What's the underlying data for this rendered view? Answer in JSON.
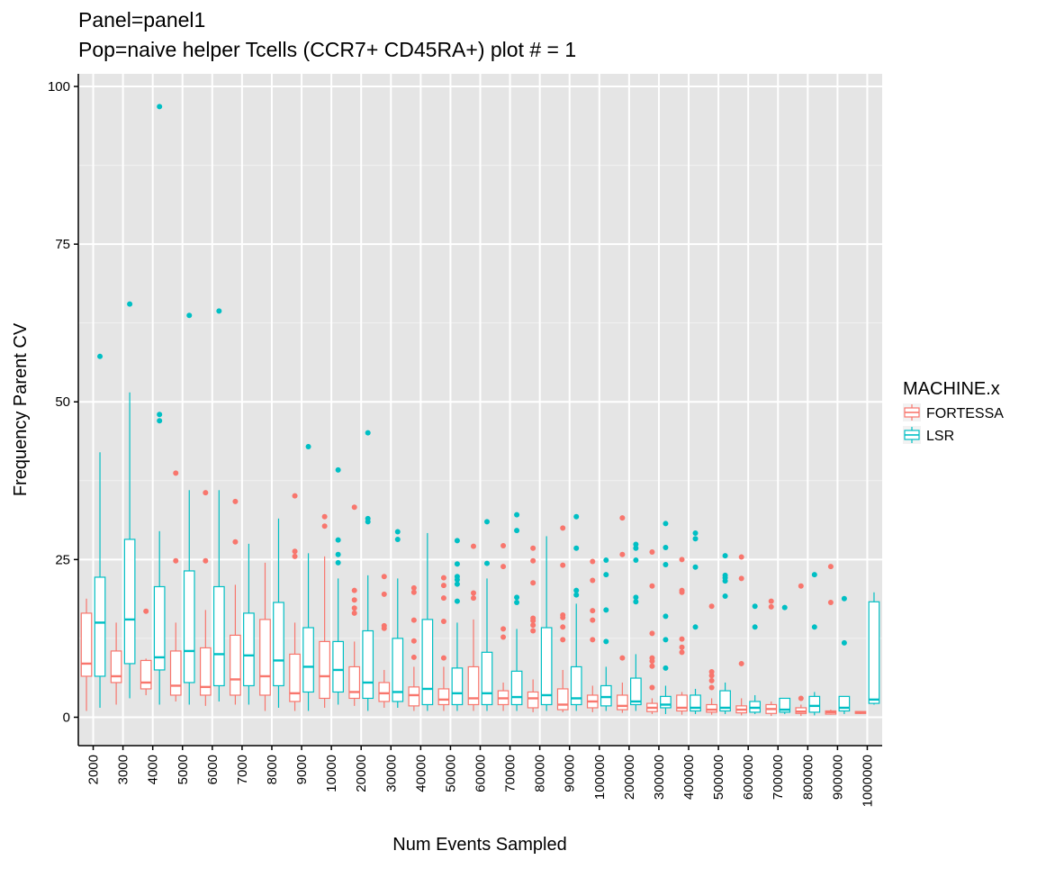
{
  "chart_data": {
    "type": "boxplot",
    "title": "Panel=panel1",
    "subtitle": "Pop=naive helper Tcells (CCR7+ CD45RA+) plot # = 1",
    "xlabel": "Num Events Sampled",
    "ylabel": "Frequency Parent CV",
    "ylim": [
      -4.5,
      102
    ],
    "yticks": [
      0,
      25,
      50,
      75,
      100
    ],
    "ytick_labels": [
      "0",
      "25",
      "50",
      "75",
      "100"
    ],
    "grid": true,
    "legend": {
      "title": "MACHINE.x",
      "placement": "right",
      "entries": [
        "FORTESSA",
        "LSR"
      ]
    },
    "categories": [
      "2000",
      "3000",
      "4000",
      "5000",
      "6000",
      "7000",
      "8000",
      "9000",
      "10000",
      "20000",
      "30000",
      "40000",
      "50000",
      "60000",
      "70000",
      "80000",
      "90000",
      "100000",
      "200000",
      "300000",
      "400000",
      "500000",
      "600000",
      "700000",
      "800000",
      "900000",
      "1000000"
    ],
    "series": [
      {
        "name": "FORTESSA",
        "color": "#F8766D",
        "boxes": [
          {
            "lo": 1.0,
            "q1": 6.5,
            "med": 8.5,
            "q3": 16.5,
            "hi": 18.8,
            "out": []
          },
          {
            "lo": 2.0,
            "q1": 5.5,
            "med": 6.5,
            "q3": 10.5,
            "hi": 15.0,
            "out": []
          },
          {
            "lo": 3.5,
            "q1": 4.5,
            "med": 5.5,
            "q3": 9.0,
            "hi": 9.3,
            "out": [
              16.8
            ]
          },
          {
            "lo": 2.5,
            "q1": 3.5,
            "med": 5.0,
            "q3": 10.5,
            "hi": 15.0,
            "out": [
              24.8,
              38.7
            ]
          },
          {
            "lo": 1.8,
            "q1": 3.5,
            "med": 4.8,
            "q3": 11.0,
            "hi": 17.0,
            "out": [
              24.8,
              35.6
            ]
          },
          {
            "lo": 2.0,
            "q1": 3.5,
            "med": 6.0,
            "q3": 13.0,
            "hi": 21.0,
            "out": [
              27.8,
              34.2
            ]
          },
          {
            "lo": 1.0,
            "q1": 3.5,
            "med": 6.5,
            "q3": 15.5,
            "hi": 24.5,
            "out": []
          },
          {
            "lo": 1.0,
            "q1": 2.5,
            "med": 3.8,
            "q3": 10.0,
            "hi": 15.0,
            "out": [
              25.5,
              26.3,
              35.1
            ]
          },
          {
            "lo": 1.5,
            "q1": 3.0,
            "med": 6.5,
            "q3": 12.0,
            "hi": 25.5,
            "out": [
              30.3,
              31.8
            ]
          },
          {
            "lo": 1.8,
            "q1": 3.0,
            "med": 4.0,
            "q3": 8.0,
            "hi": 12.0,
            "out": [
              16.5,
              17.3,
              18.6,
              20.1,
              33.3
            ]
          },
          {
            "lo": 1.5,
            "q1": 2.5,
            "med": 3.8,
            "q3": 5.5,
            "hi": 7.5,
            "out": [
              14.1,
              14.5,
              19.5,
              22.3
            ]
          },
          {
            "lo": 1.0,
            "q1": 1.8,
            "med": 3.5,
            "q3": 4.8,
            "hi": 8.0,
            "out": [
              9.5,
              12.1,
              15.4,
              19.8,
              20.5
            ]
          },
          {
            "lo": 1.0,
            "q1": 2.0,
            "med": 2.8,
            "q3": 4.5,
            "hi": 8.0,
            "out": [
              9.4,
              15.2,
              18.9,
              20.9,
              22.1
            ]
          },
          {
            "lo": 1.0,
            "q1": 2.0,
            "med": 3.0,
            "q3": 8.0,
            "hi": 15.5,
            "out": [
              18.9,
              19.7,
              27.1
            ]
          },
          {
            "lo": 1.0,
            "q1": 2.0,
            "med": 3.0,
            "q3": 4.2,
            "hi": 5.5,
            "out": [
              12.7,
              14.0,
              23.9,
              27.2
            ]
          },
          {
            "lo": 0.8,
            "q1": 1.5,
            "med": 3.0,
            "q3": 4.0,
            "hi": 6.0,
            "out": [
              13.7,
              14.6,
              15.3,
              15.7,
              21.3,
              24.8,
              26.8
            ]
          },
          {
            "lo": 0.8,
            "q1": 1.2,
            "med": 2.0,
            "q3": 4.5,
            "hi": 7.5,
            "out": [
              12.3,
              14.3,
              15.8,
              16.2,
              24.1,
              30.0
            ]
          },
          {
            "lo": 0.8,
            "q1": 1.5,
            "med": 2.5,
            "q3": 3.5,
            "hi": 5.0,
            "out": [
              12.3,
              15.4,
              16.9,
              21.7,
              24.7
            ]
          },
          {
            "lo": 0.7,
            "q1": 1.2,
            "med": 1.8,
            "q3": 3.5,
            "hi": 5.5,
            "out": [
              9.4,
              25.8,
              31.6
            ]
          },
          {
            "lo": 0.5,
            "q1": 0.9,
            "med": 1.5,
            "q3": 2.2,
            "hi": 3.0,
            "out": [
              4.7,
              8.1,
              8.9,
              9.4,
              13.3,
              20.8,
              26.2
            ]
          },
          {
            "lo": 0.4,
            "q1": 1.0,
            "med": 1.5,
            "q3": 3.5,
            "hi": 4.0,
            "out": [
              10.3,
              11.1,
              12.4,
              19.8,
              20.1,
              25.0
            ]
          },
          {
            "lo": 0.4,
            "q1": 0.8,
            "med": 1.2,
            "q3": 2.0,
            "hi": 3.0,
            "out": [
              4.7,
              5.8,
              6.6,
              7.2,
              17.6
            ]
          },
          {
            "lo": 0.3,
            "q1": 0.7,
            "med": 1.2,
            "q3": 1.8,
            "hi": 3.0,
            "out": [
              8.5,
              22.0,
              25.4
            ]
          },
          {
            "lo": 0.2,
            "q1": 0.6,
            "med": 1.3,
            "q3": 2.0,
            "hi": 2.5,
            "out": [
              17.5,
              18.4
            ]
          },
          {
            "lo": 0.2,
            "q1": 0.6,
            "med": 0.9,
            "q3": 1.5,
            "hi": 2.0,
            "out": [
              3.0,
              20.8
            ]
          },
          {
            "lo": 0.4,
            "q1": 0.5,
            "med": 0.8,
            "q3": 1.0,
            "hi": 1.2,
            "out": [
              18.2,
              23.9
            ]
          },
          {
            "lo": 0.5,
            "q1": 0.6,
            "med": 0.8,
            "q3": 0.9,
            "hi": 1.0,
            "out": []
          }
        ]
      },
      {
        "name": "LSR",
        "color": "#00BFC4",
        "boxes": [
          {
            "lo": 1.5,
            "q1": 6.5,
            "med": 15.0,
            "q3": 22.2,
            "hi": 42.0,
            "out": [
              57.2
            ]
          },
          {
            "lo": 3.0,
            "q1": 8.5,
            "med": 15.5,
            "q3": 28.2,
            "hi": 51.5,
            "out": [
              65.5
            ]
          },
          {
            "lo": 2.0,
            "q1": 7.5,
            "med": 9.5,
            "q3": 20.7,
            "hi": 29.5,
            "out": [
              47.0,
              48.0,
              96.8
            ]
          },
          {
            "lo": 2.0,
            "q1": 5.5,
            "med": 10.5,
            "q3": 23.2,
            "hi": 36.0,
            "out": [
              63.7
            ]
          },
          {
            "lo": 2.5,
            "q1": 5.0,
            "med": 10.0,
            "q3": 20.7,
            "hi": 36.0,
            "out": [
              64.4
            ]
          },
          {
            "lo": 2.0,
            "q1": 5.0,
            "med": 9.8,
            "q3": 16.5,
            "hi": 27.5,
            "out": []
          },
          {
            "lo": 1.5,
            "q1": 5.0,
            "med": 9.0,
            "q3": 18.2,
            "hi": 31.5,
            "out": []
          },
          {
            "lo": 1.0,
            "q1": 4.0,
            "med": 8.0,
            "q3": 14.2,
            "hi": 26.0,
            "out": [
              42.9
            ]
          },
          {
            "lo": 2.0,
            "q1": 4.0,
            "med": 7.5,
            "q3": 12.0,
            "hi": 22.0,
            "out": [
              24.5,
              25.8,
              28.1,
              39.2
            ]
          },
          {
            "lo": 1.0,
            "q1": 3.0,
            "med": 5.5,
            "q3": 13.7,
            "hi": 22.5,
            "out": [
              31.0,
              31.5,
              45.1
            ]
          },
          {
            "lo": 1.5,
            "q1": 2.5,
            "med": 4.0,
            "q3": 12.5,
            "hi": 22.0,
            "out": [
              28.2,
              29.4
            ]
          },
          {
            "lo": 1.0,
            "q1": 2.0,
            "med": 4.5,
            "q3": 15.5,
            "hi": 29.2,
            "out": []
          },
          {
            "lo": 1.0,
            "q1": 2.0,
            "med": 3.8,
            "q3": 7.8,
            "hi": 15.0,
            "out": [
              18.4,
              21.1,
              21.8,
              22.3,
              24.3,
              28.0
            ]
          },
          {
            "lo": 1.0,
            "q1": 2.0,
            "med": 3.8,
            "q3": 10.3,
            "hi": 22.0,
            "out": [
              24.4,
              31.0
            ]
          },
          {
            "lo": 1.0,
            "q1": 2.0,
            "med": 3.2,
            "q3": 7.3,
            "hi": 14.0,
            "out": [
              18.2,
              19.0,
              29.6,
              32.1
            ]
          },
          {
            "lo": 1.0,
            "q1": 2.0,
            "med": 3.5,
            "q3": 14.2,
            "hi": 28.7,
            "out": []
          },
          {
            "lo": 1.0,
            "q1": 2.0,
            "med": 3.0,
            "q3": 8.0,
            "hi": 18.0,
            "out": [
              19.4,
              20.1,
              26.8,
              31.8
            ]
          },
          {
            "lo": 1.0,
            "q1": 1.8,
            "med": 3.2,
            "q3": 5.0,
            "hi": 8.0,
            "out": [
              12.0,
              17.0,
              22.6,
              24.9
            ]
          },
          {
            "lo": 1.0,
            "q1": 2.0,
            "med": 2.5,
            "q3": 6.2,
            "hi": 10.0,
            "out": [
              18.3,
              19.0,
              24.9,
              26.8,
              27.4
            ]
          },
          {
            "lo": 0.5,
            "q1": 1.5,
            "med": 2.0,
            "q3": 3.3,
            "hi": 5.0,
            "out": [
              7.8,
              12.3,
              16.0,
              24.2,
              26.9,
              30.7
            ]
          },
          {
            "lo": 0.5,
            "q1": 1.0,
            "med": 1.5,
            "q3": 3.5,
            "hi": 4.5,
            "out": [
              14.3,
              23.8,
              28.3,
              29.2
            ]
          },
          {
            "lo": 0.5,
            "q1": 1.0,
            "med": 1.5,
            "q3": 4.2,
            "hi": 5.5,
            "out": [
              19.2,
              21.6,
              22.1,
              22.5,
              25.6
            ]
          },
          {
            "lo": 0.5,
            "q1": 0.8,
            "med": 1.5,
            "q3": 2.5,
            "hi": 3.5,
            "out": [
              14.3,
              17.6
            ]
          },
          {
            "lo": 0.5,
            "q1": 0.8,
            "med": 1.2,
            "q3": 3.0,
            "hi": 3.0,
            "out": [
              17.4
            ]
          },
          {
            "lo": 0.3,
            "q1": 0.8,
            "med": 1.8,
            "q3": 3.3,
            "hi": 4.0,
            "out": [
              14.3,
              22.6
            ]
          },
          {
            "lo": 0.5,
            "q1": 1.0,
            "med": 1.5,
            "q3": 3.3,
            "hi": 3.3,
            "out": [
              11.8,
              18.8
            ]
          },
          {
            "lo": 2.0,
            "q1": 2.2,
            "med": 2.8,
            "q3": 18.3,
            "hi": 19.8,
            "out": []
          }
        ]
      }
    ]
  }
}
